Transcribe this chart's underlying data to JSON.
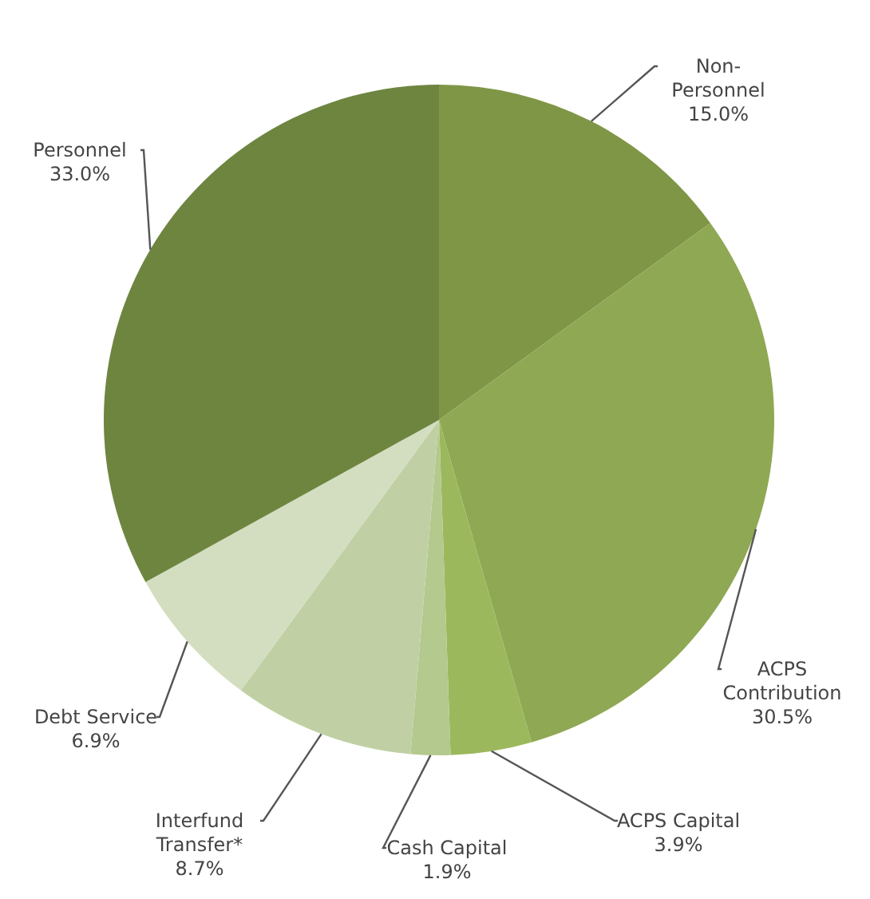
{
  "chart_data": {
    "type": "pie",
    "categories": [
      "Non-Personnel",
      "ACPS Contribution",
      "ACPS Capital",
      "Cash Capital",
      "Interfund Transfer*",
      "Debt Service",
      "Personnel"
    ],
    "values": [
      15.0,
      30.5,
      3.9,
      1.9,
      8.7,
      6.9,
      33.0
    ],
    "value_labels": [
      "15.0%",
      "30.5%",
      "3.9%",
      "1.9%",
      "8.7%",
      "6.9%",
      "33.0%"
    ],
    "colors": [
      "#7f9647",
      "#8fa853",
      "#9cb85c",
      "#b3c98d",
      "#c0d0a4",
      "#d3dec0",
      "#6e8540"
    ],
    "legend": false
  }
}
